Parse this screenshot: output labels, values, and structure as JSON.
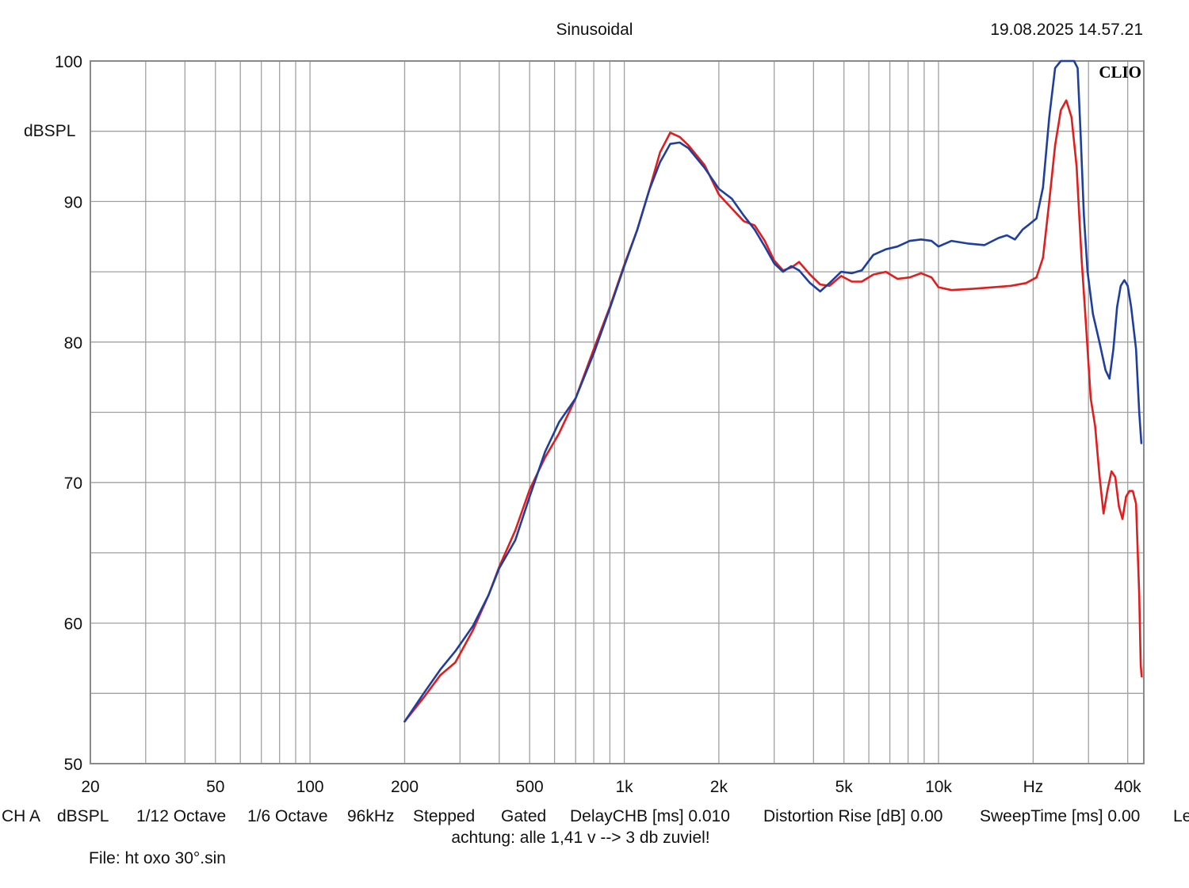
{
  "header": {
    "title": "Sinusoidal",
    "timestamp": "19.08.2025 14.57.21",
    "brand": "CLIO"
  },
  "footer": {
    "items": [
      "CH A",
      "dBSPL",
      "1/12 Octave",
      "1/6 Octave",
      "96kHz",
      "Stepped",
      "Gated",
      "DelayCHB [ms] 0.010",
      "Distortion Rise [dB] 0.00",
      "SweepTime [ms] 0.00",
      "Le"
    ],
    "note": "achtung: alle 1,41 v --> 3 db zuviel!",
    "file": "File: ht oxo 30°.sin"
  },
  "colors": {
    "grid": "#a0a0a0",
    "frame": "#8a8a8a",
    "red_series": "#e11d1d",
    "blue_series": "#1f3fa0"
  },
  "chart_data": {
    "type": "line",
    "title": "Sinusoidal",
    "ylabel": "dBSPL",
    "xlabel": "",
    "xscale": "log",
    "xlim": [
      20,
      45000
    ],
    "ylim": [
      50,
      100
    ],
    "grid": true,
    "x_tick_labels": [
      {
        "value": 20,
        "label": "20"
      },
      {
        "value": 50,
        "label": "50"
      },
      {
        "value": 100,
        "label": "100"
      },
      {
        "value": 200,
        "label": "200"
      },
      {
        "value": 500,
        "label": "500"
      },
      {
        "value": 1000,
        "label": "1k"
      },
      {
        "value": 2000,
        "label": "2k"
      },
      {
        "value": 5000,
        "label": "5k"
      },
      {
        "value": 10000,
        "label": "10k"
      },
      {
        "value": 20000,
        "label": "Hz"
      },
      {
        "value": 40000,
        "label": "40k"
      }
    ],
    "y_tick_labels": [
      {
        "value": 100,
        "label": "100"
      },
      {
        "value": 90,
        "label": "90"
      },
      {
        "value": 80,
        "label": "80"
      },
      {
        "value": 70,
        "label": "70"
      },
      {
        "value": 60,
        "label": "60"
      },
      {
        "value": 50,
        "label": "50"
      }
    ],
    "series": [
      {
        "color": "#e11d1d",
        "points": [
          [
            200,
            53.0
          ],
          [
            230,
            54.7
          ],
          [
            260,
            56.3
          ],
          [
            290,
            57.2
          ],
          [
            330,
            59.5
          ],
          [
            370,
            62.0
          ],
          [
            400,
            64.0
          ],
          [
            450,
            66.6
          ],
          [
            500,
            69.5
          ],
          [
            560,
            71.8
          ],
          [
            620,
            73.5
          ],
          [
            700,
            76.0
          ],
          [
            800,
            79.5
          ],
          [
            900,
            82.5
          ],
          [
            1000,
            85.5
          ],
          [
            1100,
            88.0
          ],
          [
            1200,
            90.8
          ],
          [
            1300,
            93.5
          ],
          [
            1400,
            94.9
          ],
          [
            1500,
            94.6
          ],
          [
            1600,
            94.0
          ],
          [
            1800,
            92.6
          ],
          [
            2000,
            90.5
          ],
          [
            2200,
            89.5
          ],
          [
            2400,
            88.6
          ],
          [
            2600,
            88.3
          ],
          [
            2800,
            87.2
          ],
          [
            3000,
            85.8
          ],
          [
            3200,
            85.1
          ],
          [
            3400,
            85.3
          ],
          [
            3600,
            85.7
          ],
          [
            3900,
            84.8
          ],
          [
            4200,
            84.1
          ],
          [
            4500,
            84.0
          ],
          [
            4900,
            84.7
          ],
          [
            5300,
            84.3
          ],
          [
            5700,
            84.3
          ],
          [
            6200,
            84.8
          ],
          [
            6800,
            85.0
          ],
          [
            7400,
            84.5
          ],
          [
            8100,
            84.6
          ],
          [
            8800,
            84.9
          ],
          [
            9500,
            84.6
          ],
          [
            10000,
            83.9
          ],
          [
            11000,
            83.7
          ],
          [
            13000,
            83.8
          ],
          [
            15000,
            83.9
          ],
          [
            17000,
            84.0
          ],
          [
            19000,
            84.2
          ],
          [
            20500,
            84.6
          ],
          [
            21500,
            86.0
          ],
          [
            22500,
            90.0
          ],
          [
            23500,
            94.0
          ],
          [
            24500,
            96.5
          ],
          [
            25500,
            97.2
          ],
          [
            26500,
            96.0
          ],
          [
            27500,
            92.5
          ],
          [
            28500,
            86.0
          ],
          [
            29500,
            81.0
          ],
          [
            30500,
            76.0
          ],
          [
            31500,
            74.0
          ],
          [
            32500,
            70.5
          ],
          [
            33500,
            67.8
          ],
          [
            34500,
            69.5
          ],
          [
            35500,
            70.8
          ],
          [
            36500,
            70.4
          ],
          [
            37500,
            68.3
          ],
          [
            38500,
            67.4
          ],
          [
            39500,
            69.0
          ],
          [
            40500,
            69.4
          ],
          [
            41500,
            69.4
          ],
          [
            42500,
            68.5
          ],
          [
            43500,
            62.0
          ],
          [
            44000,
            57.0
          ],
          [
            44300,
            56.2
          ]
        ]
      },
      {
        "color": "#1f3fa0",
        "points": [
          [
            200,
            53.0
          ],
          [
            230,
            55.0
          ],
          [
            260,
            56.7
          ],
          [
            290,
            58.0
          ],
          [
            330,
            59.8
          ],
          [
            370,
            62.0
          ],
          [
            400,
            63.9
          ],
          [
            450,
            65.9
          ],
          [
            500,
            69.0
          ],
          [
            560,
            72.2
          ],
          [
            620,
            74.3
          ],
          [
            700,
            76.0
          ],
          [
            800,
            79.2
          ],
          [
            900,
            82.4
          ],
          [
            1000,
            85.4
          ],
          [
            1100,
            88.0
          ],
          [
            1200,
            90.8
          ],
          [
            1300,
            92.8
          ],
          [
            1400,
            94.1
          ],
          [
            1500,
            94.2
          ],
          [
            1600,
            93.8
          ],
          [
            1800,
            92.4
          ],
          [
            2000,
            90.9
          ],
          [
            2200,
            90.2
          ],
          [
            2400,
            89.0
          ],
          [
            2600,
            88.0
          ],
          [
            2800,
            86.8
          ],
          [
            3000,
            85.6
          ],
          [
            3200,
            85.0
          ],
          [
            3400,
            85.4
          ],
          [
            3600,
            85.1
          ],
          [
            3900,
            84.2
          ],
          [
            4200,
            83.6
          ],
          [
            4500,
            84.2
          ],
          [
            4900,
            85.0
          ],
          [
            5300,
            84.9
          ],
          [
            5700,
            85.1
          ],
          [
            6200,
            86.2
          ],
          [
            6800,
            86.6
          ],
          [
            7400,
            86.8
          ],
          [
            8100,
            87.2
          ],
          [
            8800,
            87.3
          ],
          [
            9500,
            87.2
          ],
          [
            10000,
            86.8
          ],
          [
            11000,
            87.2
          ],
          [
            12500,
            87.0
          ],
          [
            14000,
            86.9
          ],
          [
            15500,
            87.4
          ],
          [
            16500,
            87.6
          ],
          [
            17500,
            87.3
          ],
          [
            18500,
            88.0
          ],
          [
            19500,
            88.4
          ],
          [
            20500,
            88.8
          ],
          [
            21500,
            91.0
          ],
          [
            22500,
            96.0
          ],
          [
            23500,
            99.5
          ],
          [
            24500,
            100.0
          ],
          [
            26000,
            100.0
          ],
          [
            27000,
            100.0
          ],
          [
            27700,
            99.5
          ],
          [
            28300,
            95.0
          ],
          [
            29000,
            89.0
          ],
          [
            29800,
            85.0
          ],
          [
            31000,
            82.0
          ],
          [
            32500,
            80.0
          ],
          [
            34000,
            78.0
          ],
          [
            35000,
            77.4
          ],
          [
            36000,
            79.5
          ],
          [
            37000,
            82.5
          ],
          [
            38000,
            84.0
          ],
          [
            39000,
            84.4
          ],
          [
            40000,
            84.0
          ],
          [
            41000,
            82.5
          ],
          [
            42500,
            79.5
          ],
          [
            43500,
            75.0
          ],
          [
            44200,
            72.8
          ]
        ]
      }
    ]
  }
}
